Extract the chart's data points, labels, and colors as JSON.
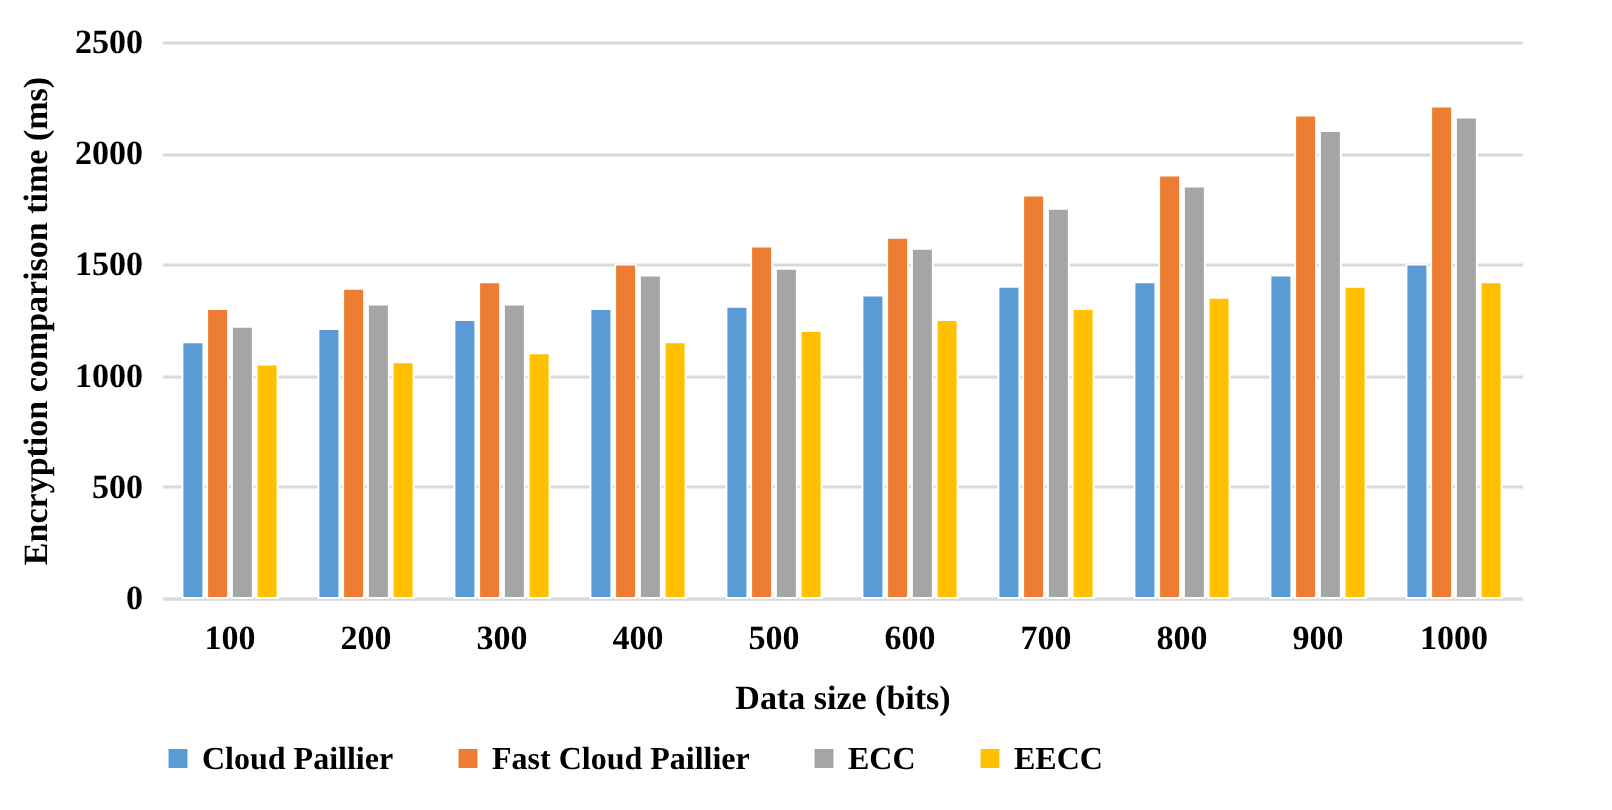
{
  "chart_data": {
    "type": "bar",
    "xlabel": "Data size (bits)",
    "ylabel": "Encryption comparison time (ms)",
    "categories": [
      "100",
      "200",
      "300",
      "400",
      "500",
      "600",
      "700",
      "800",
      "900",
      "1000"
    ],
    "series": [
      {
        "name": "Cloud Paillier",
        "color": "#5b9bd5",
        "values": [
          1150,
          1210,
          1250,
          1300,
          1310,
          1360,
          1400,
          1420,
          1450,
          1500
        ]
      },
      {
        "name": "Fast Cloud Paillier",
        "color": "#ed7d31",
        "values": [
          1300,
          1390,
          1420,
          1500,
          1580,
          1620,
          1810,
          1900,
          2170,
          2210
        ]
      },
      {
        "name": "ECC",
        "color": "#a5a5a5",
        "values": [
          1220,
          1320,
          1320,
          1450,
          1480,
          1570,
          1750,
          1850,
          2100,
          2160
        ]
      },
      {
        "name": "EECC",
        "color": "#ffc000",
        "values": [
          1050,
          1060,
          1100,
          1150,
          1200,
          1250,
          1300,
          1350,
          1400,
          1420
        ]
      }
    ],
    "ylim": [
      0,
      2500
    ],
    "yticks": [
      0,
      500,
      1000,
      1500,
      2000,
      2500
    ],
    "grid": "y",
    "legend": "bottom"
  }
}
